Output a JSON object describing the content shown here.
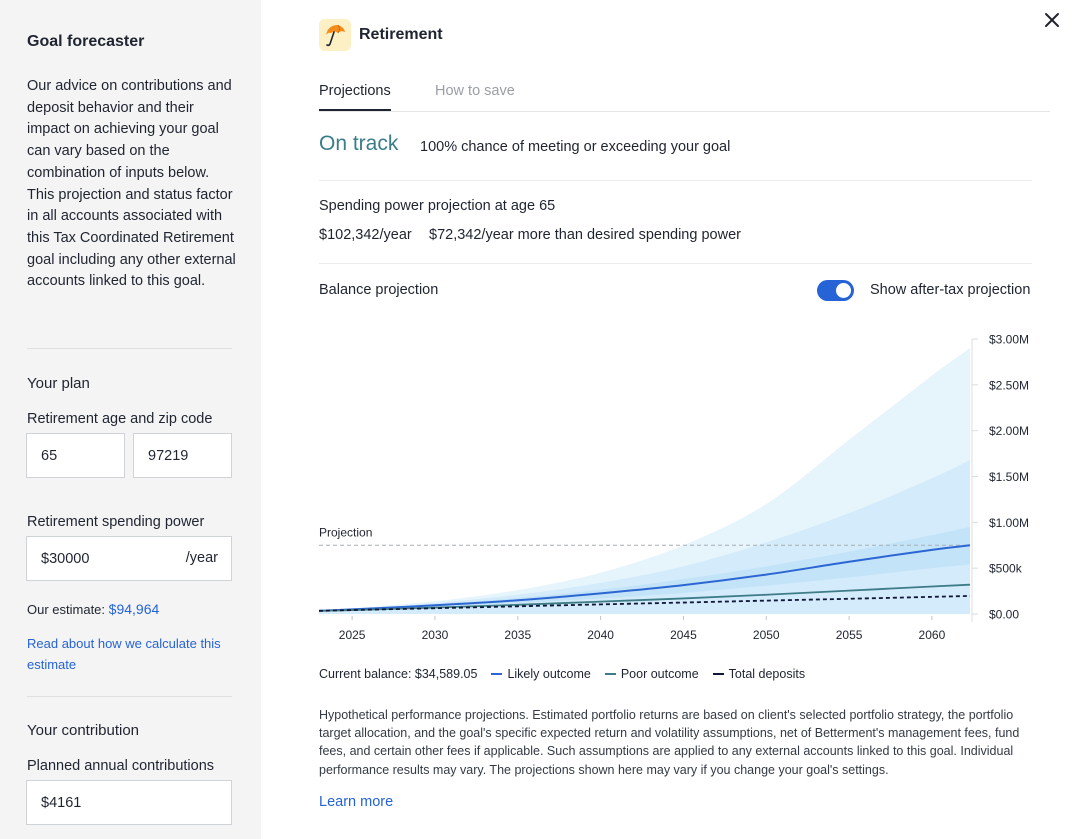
{
  "sidebar": {
    "title": "Goal forecaster",
    "description": "Our advice on contributions and deposit behavior and their impact on achieving your goal can vary based on the combination of inputs below. This projection and status factor in all accounts associated with this Tax Coordinated Retirement goal including any other external accounts linked to this goal.",
    "plan_heading": "Your plan",
    "retirement_age_label": "Retirement age and zip code",
    "retirement_age": "65",
    "zip_code": "97219",
    "spending_label": "Retirement spending power",
    "spending_value": "$30000",
    "spending_suffix": "/year",
    "estimate_label": "Our estimate:",
    "estimate_value": "$94,964",
    "estimate_link": "Read about how we calculate this estimate",
    "contribution_heading": "Your contribution",
    "contribution_label": "Planned annual contributions",
    "contribution_value": "$4161"
  },
  "header": {
    "goal_title": "Retirement",
    "goal_icon": "umbrella-icon",
    "close_icon": "close-icon"
  },
  "tabs": [
    {
      "label": "Projections",
      "active": true
    },
    {
      "label": "How to save",
      "active": false
    }
  ],
  "status": {
    "label": "On track",
    "description": "100% chance of meeting or exceeding your goal"
  },
  "spending": {
    "heading": "Spending power projection at age 65",
    "value": "$102,342/year",
    "more": "$72,342/year more than desired spending power"
  },
  "balance": {
    "heading": "Balance projection",
    "toggle_label": "Show after-tax projection",
    "toggle_on": true
  },
  "chart_data": {
    "type": "area",
    "x_ticks": [
      "2025",
      "2030",
      "2035",
      "2040",
      "2045",
      "2050",
      "2055",
      "2060"
    ],
    "y_ticks": [
      "$3.00M",
      "$2.50M",
      "$2.00M",
      "$1.50M",
      "$1.00M",
      "$500k",
      "$0.00"
    ],
    "xlim": [
      2023,
      2062.3
    ],
    "ylim": [
      0,
      3000000
    ],
    "projection_label": "Projection",
    "projection_value": 750000,
    "years": [
      2023,
      2025,
      2030,
      2035,
      2040,
      2045,
      2050,
      2055,
      2060,
      2062.3
    ],
    "series": [
      {
        "name": "Likely outcome",
        "color": "#2c66d3",
        "values": [
          34589,
          50000,
          95000,
          150000,
          225000,
          315000,
          430000,
          570000,
          700000,
          750000
        ]
      },
      {
        "name": "Poor outcome",
        "color": "#3d7c86",
        "values": [
          34589,
          42000,
          70000,
          100000,
          135000,
          170000,
          210000,
          255000,
          300000,
          320000
        ]
      },
      {
        "name": "Total deposits",
        "color": "#101838",
        "values": [
          34589,
          43000,
          63000,
          84000,
          105000,
          125000,
          146000,
          166000,
          187000,
          197000
        ]
      }
    ],
    "bands": [
      {
        "color": "#e6f4fc",
        "upper": [
          34589,
          60000,
          140000,
          260000,
          450000,
          750000,
          1200000,
          1900000,
          2600000,
          2900000
        ]
      },
      {
        "color": "#d3ebfa",
        "upper": [
          34589,
          56000,
          120000,
          210000,
          340000,
          520000,
          780000,
          1100000,
          1480000,
          1680000
        ]
      },
      {
        "color": "#c3e3f8",
        "upper": [
          34589,
          52000,
          105000,
          175000,
          265000,
          380000,
          520000,
          680000,
          860000,
          950000
        ],
        "lower": [
          34589,
          46000,
          80000,
          120000,
          170000,
          230000,
          310000,
          400000,
          500000,
          540000
        ]
      }
    ]
  },
  "legend": {
    "current_balance": "Current balance: $34,589.05",
    "items": [
      {
        "label": "Likely outcome",
        "color": "#2c66d3"
      },
      {
        "label": "Poor outcome",
        "color": "#3d7c86"
      },
      {
        "label": "Total deposits",
        "color": "#101838"
      }
    ]
  },
  "disclaimer": "Hypothetical performance projections. Estimated portfolio returns are based on client's selected portfolio strategy, the portfolio target allocation, and the goal's specific expected return and volatility assumptions, net of Betterment's management fees, fund fees, and certain other fees if applicable. Such assumptions are applied to any external accounts linked to this goal. Individual performance results may vary. The projections shown here may vary if you change your goal's settings.",
  "learn_more": "Learn more"
}
